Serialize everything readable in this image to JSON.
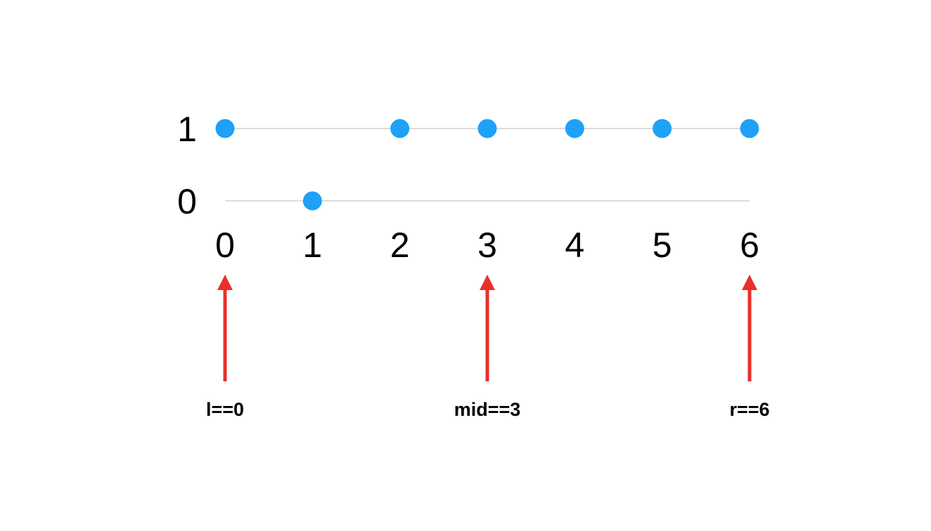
{
  "chart_data": {
    "type": "scatter",
    "x": [
      0,
      1,
      2,
      3,
      4,
      5,
      6
    ],
    "y": [
      1,
      0,
      1,
      1,
      1,
      1,
      1
    ],
    "x_ticks": [
      "0",
      "1",
      "2",
      "3",
      "4",
      "5",
      "6"
    ],
    "y_ticks": [
      "0",
      "1"
    ],
    "xlim": [
      0,
      6
    ],
    "ylim": [
      0,
      1
    ],
    "grid": true
  },
  "pointers": [
    {
      "index": 0,
      "label": "l==0"
    },
    {
      "index": 3,
      "label": "mid==3"
    },
    {
      "index": 6,
      "label": "r==6"
    }
  ],
  "colors": {
    "point": "#1ea1f7",
    "arrow": "#e8302a",
    "guide": "#c8c8c8",
    "text": "#000000"
  }
}
